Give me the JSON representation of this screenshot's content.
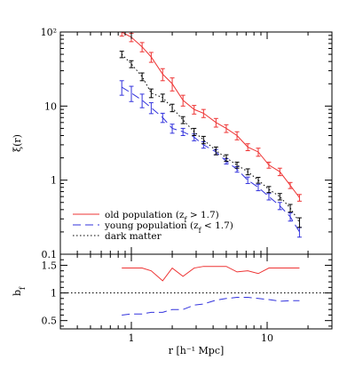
{
  "chart_data": [
    {
      "type": "line",
      "panel": "top",
      "xscale": "log",
      "yscale": "log",
      "xlim": [
        0.3,
        30
      ],
      "ylim": [
        0.1,
        100
      ],
      "ylabel": "ξ(r)",
      "xticks": [
        {
          "value": 1,
          "label": "1"
        },
        {
          "value": 10,
          "label": "10"
        }
      ],
      "yticks": [
        {
          "value": 0.1,
          "label": "0.1"
        },
        {
          "value": 1,
          "label": "1"
        },
        {
          "value": 10,
          "label": "10"
        },
        {
          "value": 100,
          "label": "10²"
        }
      ],
      "legend_position": "bottom-left",
      "series": [
        {
          "name": "old population (z_f > 1.7)",
          "color": "#ee3333",
          "style": "solid",
          "x": [
            0.85,
            1.0,
            1.2,
            1.4,
            1.7,
            2.0,
            2.4,
            2.9,
            3.4,
            4.2,
            5.0,
            6.0,
            7.2,
            8.6,
            10.3,
            12.4,
            14.8,
            17.3
          ],
          "y": [
            100,
            85,
            63,
            46,
            27,
            20,
            12,
            9,
            8,
            6,
            5,
            4,
            2.8,
            2.4,
            1.6,
            1.3,
            0.85,
            0.58
          ],
          "err": [
            12,
            11,
            9,
            7,
            5,
            4,
            2,
            1.2,
            1,
            0.8,
            0.6,
            0.5,
            0.3,
            0.3,
            0.15,
            0.15,
            0.08,
            0.06
          ]
        },
        {
          "name": "young population (z_f < 1.7)",
          "color": "#3333dd",
          "style": "dashed",
          "x": [
            0.85,
            1.0,
            1.2,
            1.4,
            1.7,
            2.0,
            2.4,
            2.9,
            3.4,
            4.2,
            5.0,
            6.0,
            7.2,
            8.6,
            10.3,
            12.4,
            14.8,
            17.3
          ],
          "y": [
            18,
            15,
            12,
            9.5,
            7,
            5,
            4.5,
            3.8,
            3,
            2.4,
            1.8,
            1.4,
            1,
            0.8,
            0.6,
            0.45,
            0.32,
            0.2
          ],
          "err": [
            4,
            3.5,
            2.5,
            1.6,
            1,
            0.7,
            0.5,
            0.4,
            0.3,
            0.2,
            0.15,
            0.12,
            0.1,
            0.08,
            0.06,
            0.05,
            0.04,
            0.03
          ]
        },
        {
          "name": "dark matter",
          "color": "#000000",
          "style": "dotted",
          "x": [
            0.85,
            1.0,
            1.2,
            1.4,
            1.7,
            2.0,
            2.4,
            2.9,
            3.4,
            4.2,
            5.0,
            6.0,
            7.2,
            8.6,
            10.3,
            12.4,
            14.8,
            17.3
          ],
          "y": [
            50,
            37,
            25,
            15,
            13,
            9.5,
            6.5,
            4.5,
            3.5,
            2.5,
            2,
            1.6,
            1.3,
            1,
            0.75,
            0.6,
            0.42,
            0.27
          ],
          "err": [
            5,
            4,
            3,
            2,
            1.5,
            1.1,
            0.7,
            0.5,
            0.4,
            0.3,
            0.2,
            0.15,
            0.12,
            0.09,
            0.07,
            0.06,
            0.05,
            0.04
          ]
        }
      ]
    },
    {
      "type": "line",
      "panel": "bottom",
      "xscale": "log",
      "xlim": [
        0.3,
        30
      ],
      "ylim": [
        0.35,
        1.7
      ],
      "ylabel": "b_f",
      "xlabel": "r [h⁻¹ Mpc]",
      "xticks": [
        {
          "value": 1,
          "label": "1"
        },
        {
          "value": 10,
          "label": "10"
        }
      ],
      "yticks": [
        {
          "value": 0.5,
          "label": "0.5"
        },
        {
          "value": 1.0,
          "label": "1"
        },
        {
          "value": 1.5,
          "label": "1.5"
        }
      ],
      "reference_line": 1.0,
      "series": [
        {
          "name": "old population (z_f > 1.7)",
          "color": "#ee3333",
          "style": "solid",
          "x": [
            0.85,
            1.0,
            1.2,
            1.4,
            1.7,
            2.0,
            2.4,
            2.9,
            3.4,
            4.2,
            5.0,
            6.0,
            7.2,
            8.6,
            10.3,
            12.4,
            14.8,
            17.3
          ],
          "y": [
            1.45,
            1.45,
            1.45,
            1.4,
            1.22,
            1.45,
            1.3,
            1.45,
            1.48,
            1.48,
            1.48,
            1.38,
            1.4,
            1.35,
            1.45,
            1.45,
            1.45,
            1.45
          ]
        },
        {
          "name": "young population (z_f < 1.7)",
          "color": "#3333dd",
          "style": "dashed",
          "x": [
            0.85,
            1.0,
            1.2,
            1.4,
            1.7,
            2.0,
            2.4,
            2.9,
            3.4,
            4.2,
            5.0,
            6.0,
            7.2,
            8.6,
            10.3,
            12.4,
            14.8,
            17.3
          ],
          "y": [
            0.6,
            0.62,
            0.62,
            0.65,
            0.65,
            0.7,
            0.7,
            0.78,
            0.8,
            0.87,
            0.9,
            0.92,
            0.92,
            0.9,
            0.88,
            0.85,
            0.86,
            0.86
          ]
        },
        {
          "name": "dark matter",
          "color": "#000000",
          "style": "dotted",
          "x": [
            0.3,
            30
          ],
          "y": [
            1.0,
            1.0
          ]
        }
      ]
    }
  ]
}
